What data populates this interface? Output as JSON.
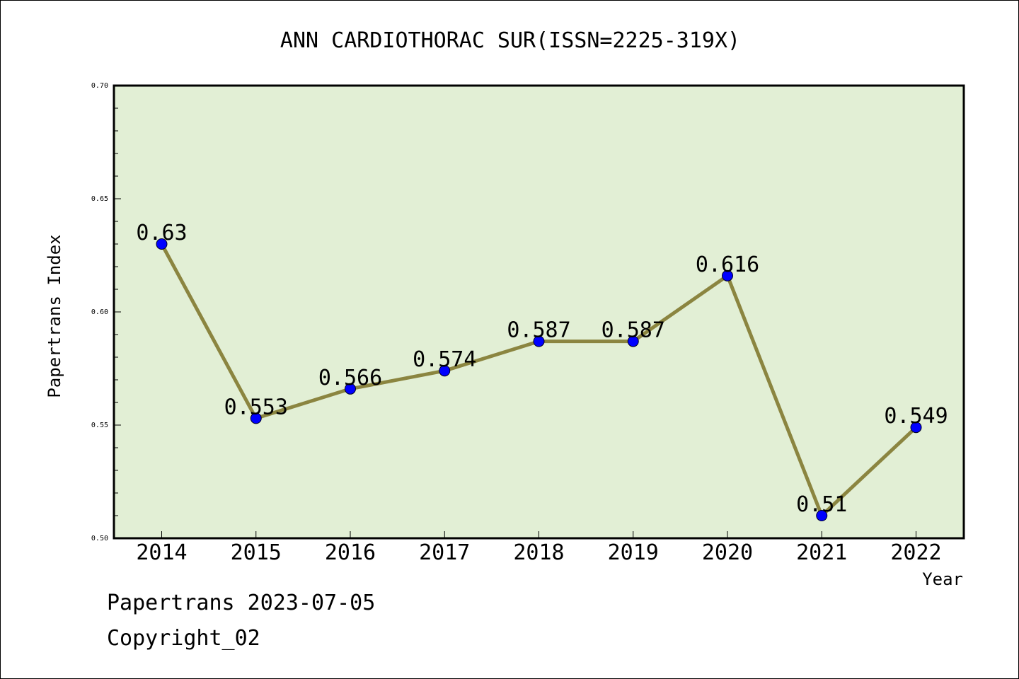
{
  "chart_data": {
    "type": "line",
    "title": "ANN CARDIOTHORAC SUR(ISSN=2225-319X)",
    "xlabel": "Year",
    "ylabel": "Papertrans Index",
    "categories": [
      "2014",
      "2015",
      "2016",
      "2017",
      "2018",
      "2019",
      "2020",
      "2021",
      "2022"
    ],
    "values": [
      0.63,
      0.553,
      0.566,
      0.574,
      0.587,
      0.587,
      0.616,
      0.51,
      0.549
    ],
    "data_labels": [
      "0.63",
      "0.553",
      "0.566",
      "0.574",
      "0.587",
      "0.587",
      "0.616",
      "0.51",
      "0.549"
    ],
    "ylim": [
      0.5,
      0.7
    ],
    "yticks": [
      "0.50",
      "0.55",
      "0.60",
      "0.65",
      "0.70"
    ],
    "grid": false,
    "legend": "none",
    "colors": {
      "plot_background": "#e2efd5",
      "line": "#8b8540",
      "marker": "#0000ff"
    }
  },
  "footer": {
    "source": "Papertrans 2023-07-05",
    "copyright": "Copyright_02"
  }
}
